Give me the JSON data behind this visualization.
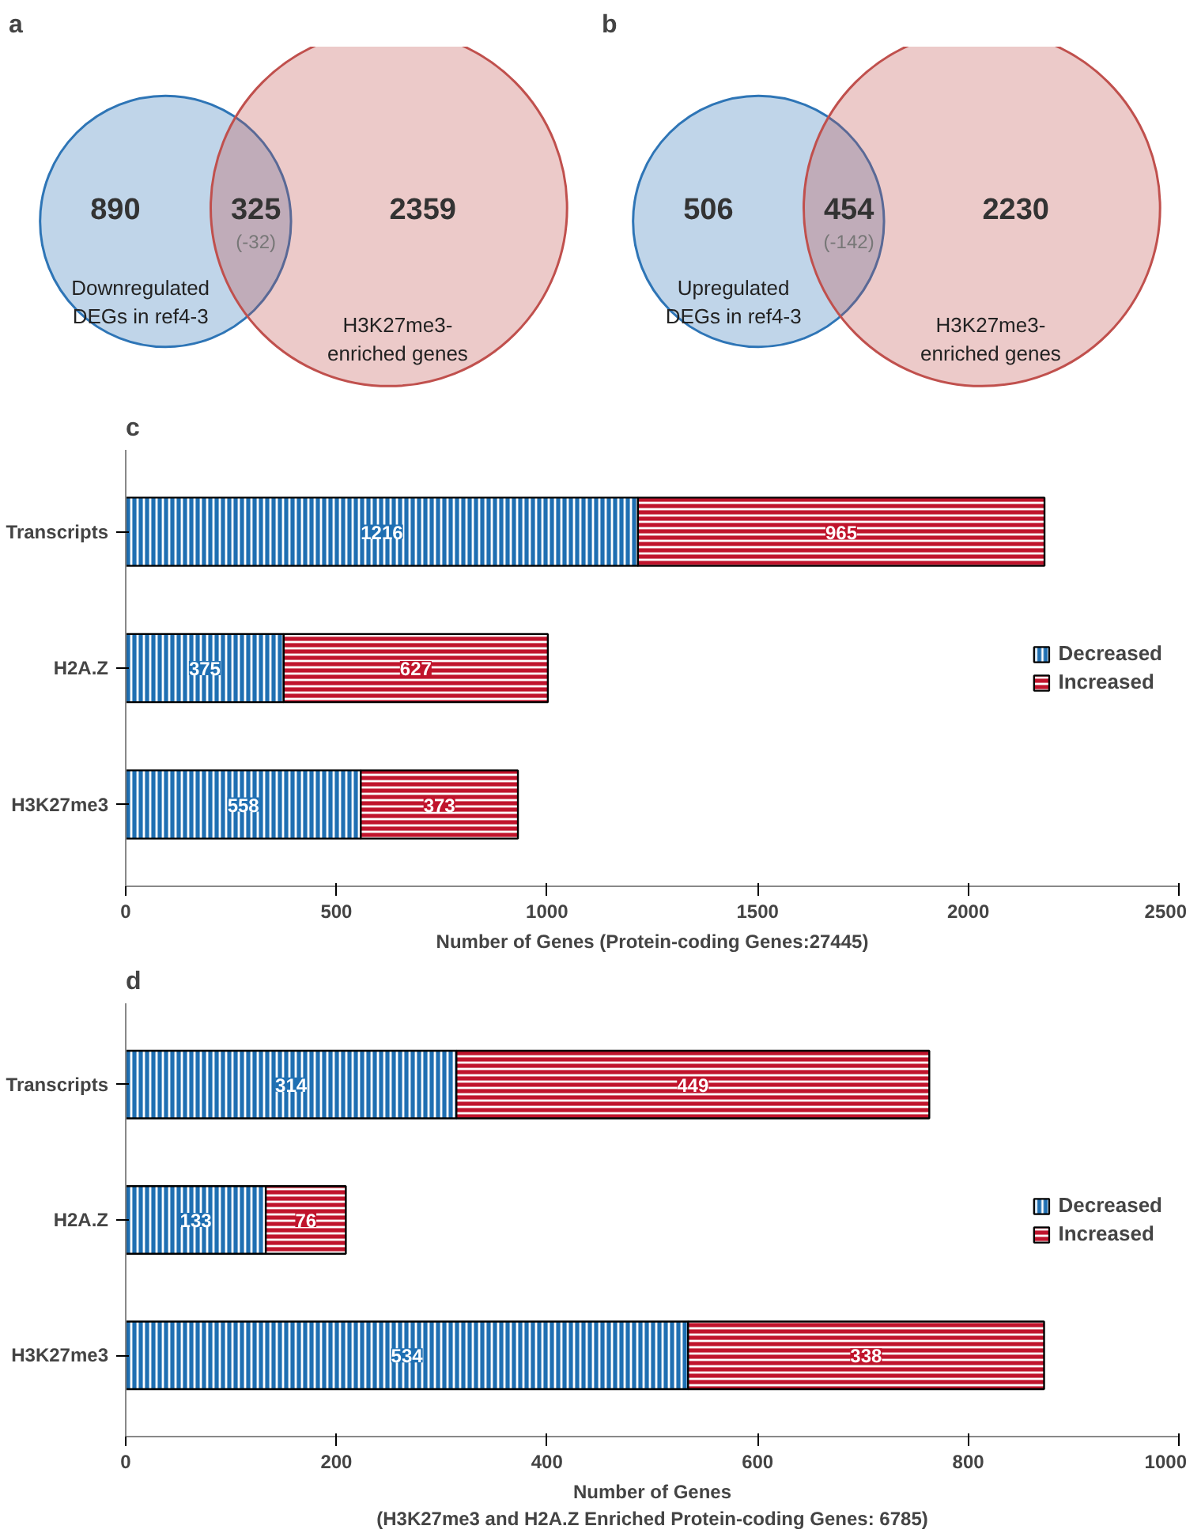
{
  "chart_data": [
    {
      "type": "other",
      "title": "a",
      "categories": [
        "Downregulated DEGs in ref4-3",
        null,
        "H3K27me3-enriched genes"
      ],
      "values": [
        890,
        325,
        2359
      ],
      "colors": [
        "#2e75b6",
        null,
        "#c0504d"
      ],
      "data_labels": true,
      "annotations": [
        "(-32)"
      ]
    },
    {
      "type": "other",
      "title": "b",
      "categories": [
        "Upregulated DEGs in ref4-3",
        null,
        "H3K27me3-enriched genes"
      ],
      "values": [
        506,
        454,
        2230
      ],
      "colors": [
        "#2e75b6",
        null,
        "#c0504d"
      ],
      "data_labels": true,
      "annotations": [
        "(-142)"
      ]
    },
    {
      "type": "bar",
      "title": "c",
      "orientation": "horizontal",
      "stacked": true,
      "categories": [
        "Transcripts",
        "H2A.Z",
        "H3K27me3"
      ],
      "series": [
        {
          "name": "Decreased",
          "color": "#1f6fb2",
          "values": [
            1216,
            375,
            558
          ]
        },
        {
          "name": "Increased",
          "color": "#c0142c",
          "values": [
            965,
            627,
            373
          ]
        }
      ],
      "xlim": [
        0,
        2500
      ],
      "xticks": [
        0,
        500,
        1000,
        1500,
        2000,
        2500
      ],
      "xlabel": "Number of Genes (Protein-coding Genes:27445)",
      "data_labels": true,
      "legend": "right",
      "grid": false
    },
    {
      "type": "bar",
      "title": "d",
      "orientation": "horizontal",
      "stacked": true,
      "categories": [
        "Transcripts",
        "H2A.Z",
        "H3K27me3"
      ],
      "series": [
        {
          "name": "Decreased",
          "color": "#1f6fb2",
          "values": [
            314,
            133,
            534
          ]
        },
        {
          "name": "Increased",
          "color": "#c0142c",
          "values": [
            449,
            76,
            338
          ]
        }
      ],
      "xlim": [
        0,
        1000
      ],
      "xticks": [
        0,
        200,
        400,
        600,
        800,
        1000
      ],
      "xlabel": "Number of Genes\n(H3K27me3 and H2A.Z Enriched Protein-coding Genes: 6785)",
      "data_labels": true,
      "legend": "right",
      "grid": false
    }
  ]
}
